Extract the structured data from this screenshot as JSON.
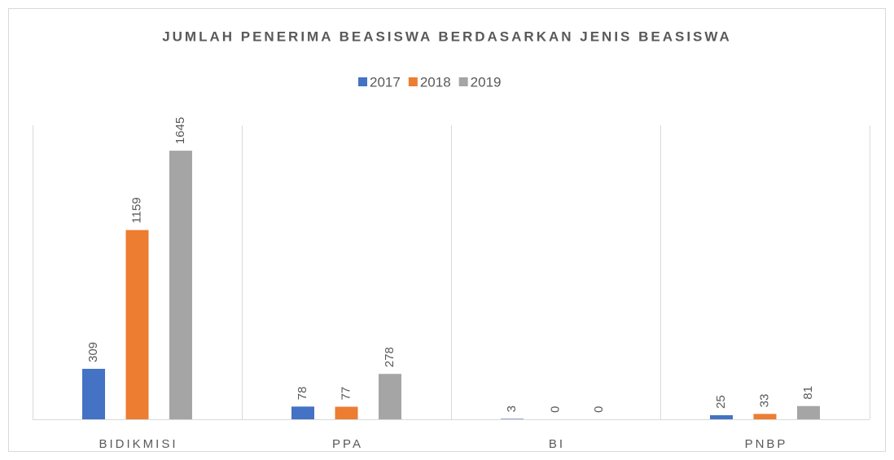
{
  "chart_data": {
    "type": "bar",
    "title": "JUMLAH PENERIMA BEASISWA BERDASARKAN JENIS BEASISWA",
    "categories": [
      "BIDIKMISI",
      "PPA",
      "BI",
      "PNBP"
    ],
    "series": [
      {
        "name": "2017",
        "color": "#4472c4",
        "values": [
          309,
          78,
          3,
          25
        ]
      },
      {
        "name": "2018",
        "color": "#ed7d31",
        "values": [
          1159,
          77,
          0,
          33
        ]
      },
      {
        "name": "2019",
        "color": "#a5a5a5",
        "values": [
          1645,
          278,
          0,
          81
        ]
      }
    ],
    "ylim": [
      0,
      1800
    ],
    "legend": "top"
  }
}
